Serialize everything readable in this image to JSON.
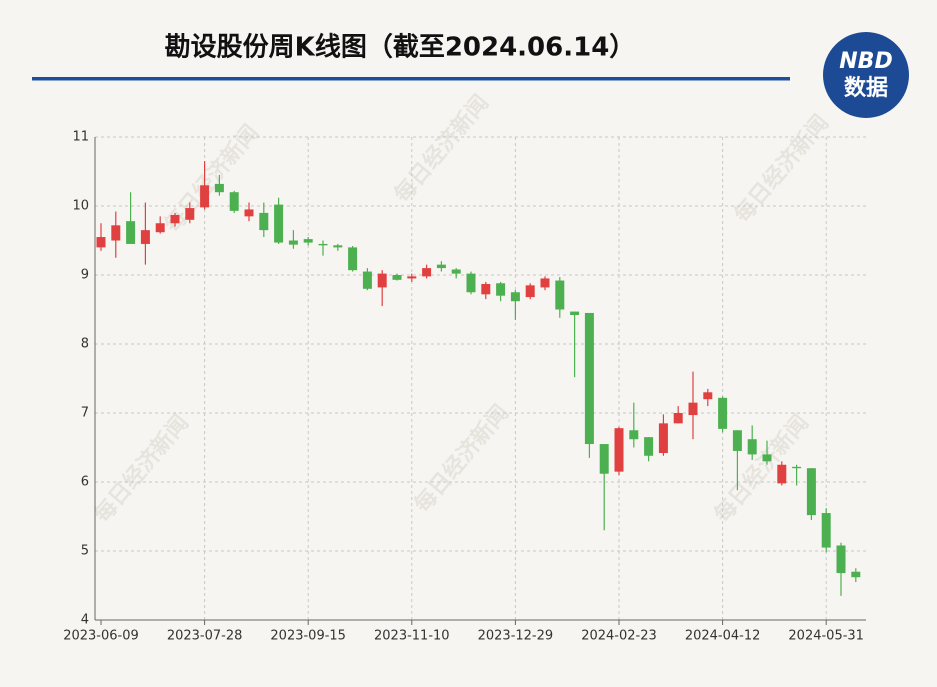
{
  "chart_data": {
    "type": "candlestick",
    "title": "勘设股份周K线图（截至2024.06.14）",
    "logo": {
      "brand": "NBD",
      "label": "数据"
    },
    "watermark": "每日经济新闻",
    "categories": [
      "2023-06-09",
      null,
      null,
      null,
      null,
      null,
      null,
      "2023-07-28",
      null,
      null,
      null,
      null,
      null,
      null,
      "2023-09-15",
      null,
      null,
      null,
      null,
      null,
      null,
      "2023-11-10",
      null,
      null,
      null,
      null,
      null,
      null,
      "2023-12-29",
      null,
      null,
      null,
      null,
      null,
      null,
      "2024-02-23",
      null,
      null,
      null,
      null,
      null,
      null,
      "2024-04-12",
      null,
      null,
      null,
      null,
      null,
      null,
      "2024-05-31",
      null,
      null
    ],
    "open": [
      9.4,
      9.5,
      9.78,
      9.45,
      9.62,
      9.75,
      9.8,
      9.98,
      10.32,
      10.2,
      9.85,
      9.9,
      10.02,
      9.5,
      9.52,
      9.45,
      9.43,
      9.4,
      9.05,
      8.82,
      9.0,
      8.95,
      8.98,
      9.15,
      9.08,
      9.02,
      8.72,
      8.88,
      8.75,
      8.68,
      8.82,
      8.92,
      8.47,
      8.45,
      6.55,
      6.15,
      6.75,
      6.65,
      6.42,
      6.85,
      6.97,
      7.2,
      7.22,
      6.75,
      6.62,
      6.4,
      5.98,
      6.22,
      6.2,
      5.55,
      5.08,
      4.7
    ],
    "close": [
      9.55,
      9.72,
      9.45,
      9.65,
      9.75,
      9.87,
      9.97,
      10.3,
      10.2,
      9.93,
      9.95,
      9.65,
      9.47,
      9.44,
      9.47,
      9.43,
      9.4,
      9.07,
      8.8,
      9.02,
      8.93,
      8.98,
      9.1,
      9.1,
      9.02,
      8.75,
      8.87,
      8.7,
      8.62,
      8.85,
      8.95,
      8.5,
      8.42,
      6.55,
      6.12,
      6.78,
      6.62,
      6.38,
      6.85,
      7.0,
      7.15,
      7.3,
      6.77,
      6.45,
      6.4,
      6.3,
      6.25,
      6.2,
      5.52,
      5.05,
      4.68,
      4.62
    ],
    "high": [
      9.75,
      9.92,
      10.2,
      10.05,
      9.85,
      9.9,
      10.05,
      10.65,
      10.45,
      10.22,
      10.05,
      10.05,
      10.12,
      9.65,
      9.55,
      9.5,
      9.45,
      9.42,
      9.1,
      9.07,
      9.02,
      9.02,
      9.15,
      9.2,
      9.1,
      9.05,
      8.9,
      8.9,
      8.78,
      8.88,
      8.98,
      8.97,
      8.47,
      8.45,
      6.55,
      6.8,
      7.15,
      6.65,
      6.98,
      7.1,
      7.6,
      7.35,
      7.24,
      6.75,
      6.82,
      6.6,
      6.3,
      6.25,
      6.2,
      5.62,
      5.12,
      4.75
    ],
    "low": [
      9.35,
      9.25,
      9.45,
      9.15,
      9.6,
      9.7,
      9.75,
      9.95,
      10.15,
      9.9,
      9.78,
      9.55,
      9.45,
      9.38,
      9.43,
      9.28,
      9.35,
      9.05,
      8.78,
      8.55,
      8.92,
      8.9,
      8.95,
      9.05,
      8.95,
      8.72,
      8.65,
      8.62,
      8.35,
      8.65,
      8.78,
      8.38,
      7.52,
      6.35,
      5.3,
      6.1,
      6.5,
      6.3,
      6.38,
      6.85,
      6.62,
      7.1,
      6.72,
      5.88,
      6.32,
      6.25,
      5.95,
      5.95,
      5.45,
      4.98,
      4.35,
      4.55
    ],
    "up_color": "#e04040",
    "down_color": "#4caf50",
    "ylim": [
      4,
      11
    ],
    "yticks": [
      4,
      5,
      6,
      7,
      8,
      9,
      10,
      11
    ],
    "grid": true
  }
}
